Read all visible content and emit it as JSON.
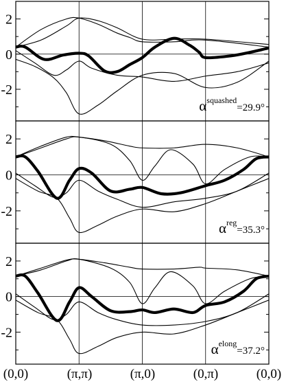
{
  "chart_data": [
    {
      "type": "line",
      "ylim": [
        -3.8,
        3.0
      ],
      "yticks": [
        "2",
        "0",
        "-2"
      ],
      "annotation": {
        "symbol": "α",
        "superscript": "squashed",
        "value": "=29.9°"
      },
      "series": [
        {
          "weight": "thick",
          "points": [
            [
              0,
              0.4
            ],
            [
              0.15,
              0.4
            ],
            [
              0.45,
              -0.3
            ],
            [
              0.75,
              -0.05
            ],
            [
              1.0,
              0.05
            ],
            [
              1.15,
              -0.1
            ],
            [
              1.4,
              -0.95
            ],
            [
              1.6,
              -1.0
            ],
            [
              1.8,
              -0.6
            ],
            [
              2.0,
              -0.2
            ],
            [
              2.2,
              0.4
            ],
            [
              2.5,
              0.9
            ],
            [
              2.75,
              0.5
            ],
            [
              2.9,
              0.1
            ],
            [
              3.0,
              -0.2
            ],
            [
              3.4,
              -0.1
            ],
            [
              3.7,
              0.1
            ],
            [
              4.0,
              0.35
            ]
          ]
        },
        {
          "weight": "thin",
          "points": [
            [
              0,
              0.4
            ],
            [
              0.4,
              1.4
            ],
            [
              0.8,
              2.0
            ],
            [
              1.0,
              2.05
            ],
            [
              1.3,
              1.7
            ],
            [
              1.6,
              1.2
            ],
            [
              1.8,
              0.95
            ],
            [
              2.0,
              0.7
            ],
            [
              2.5,
              0.7
            ],
            [
              3.0,
              0.8
            ],
            [
              4.0,
              0.4
            ]
          ]
        },
        {
          "weight": "thin",
          "points": [
            [
              0,
              0.4
            ],
            [
              0.4,
              0.8
            ],
            [
              0.8,
              1.6
            ],
            [
              1.0,
              2.05
            ],
            [
              1.3,
              1.9
            ],
            [
              1.6,
              1.5
            ],
            [
              2.0,
              0.85
            ],
            [
              2.5,
              0.85
            ],
            [
              3.0,
              0.85
            ],
            [
              4.0,
              0.55
            ]
          ]
        },
        {
          "weight": "thin",
          "points": [
            [
              0,
              0.2
            ],
            [
              0.3,
              -0.5
            ],
            [
              0.6,
              -1.2
            ],
            [
              0.8,
              -0.9
            ],
            [
              1.0,
              -0.4
            ],
            [
              1.2,
              -0.8
            ],
            [
              1.6,
              -1.2
            ],
            [
              2.0,
              -1.3
            ],
            [
              2.5,
              -1.55
            ],
            [
              3.0,
              -1.25
            ],
            [
              3.5,
              -1.0
            ],
            [
              4.0,
              -0.5
            ]
          ]
        },
        {
          "weight": "thin",
          "points": [
            [
              0,
              -0.3
            ],
            [
              0.3,
              -0.7
            ],
            [
              0.6,
              -1.35
            ],
            [
              0.8,
              -2.2
            ],
            [
              1.0,
              -3.4
            ],
            [
              1.3,
              -2.9
            ],
            [
              1.6,
              -2.1
            ],
            [
              2.0,
              -1.2
            ],
            [
              2.5,
              -1.1
            ],
            [
              3.0,
              -1.9
            ],
            [
              3.5,
              -1.6
            ],
            [
              4.0,
              -0.4
            ]
          ]
        }
      ]
    },
    {
      "type": "line",
      "ylim": [
        -3.8,
        3.0
      ],
      "yticks": [
        "2",
        "0",
        "-2"
      ],
      "annotation": {
        "symbol": "α",
        "superscript": "reg",
        "value": "=35.3°"
      },
      "series": [
        {
          "weight": "thick",
          "points": [
            [
              0,
              1.0
            ],
            [
              0.15,
              1.0
            ],
            [
              0.35,
              0.2
            ],
            [
              0.65,
              -1.3
            ],
            [
              0.85,
              -0.3
            ],
            [
              1.0,
              0.35
            ],
            [
              1.2,
              0.1
            ],
            [
              1.5,
              -0.9
            ],
            [
              1.8,
              -0.8
            ],
            [
              2.0,
              -0.7
            ],
            [
              2.3,
              -1.05
            ],
            [
              2.6,
              -1.0
            ],
            [
              3.0,
              -0.6
            ],
            [
              3.3,
              -0.3
            ],
            [
              3.6,
              0.3
            ],
            [
              3.8,
              0.9
            ],
            [
              4.0,
              1.0
            ]
          ]
        },
        {
          "weight": "thin",
          "points": [
            [
              0,
              1.0
            ],
            [
              0.4,
              1.6
            ],
            [
              0.8,
              2.1
            ],
            [
              1.0,
              2.1
            ],
            [
              1.4,
              1.9
            ],
            [
              1.8,
              1.6
            ],
            [
              2.0,
              1.5
            ],
            [
              2.5,
              1.5
            ],
            [
              3.0,
              1.7
            ],
            [
              3.5,
              1.5
            ],
            [
              4.0,
              1.0
            ]
          ]
        },
        {
          "weight": "thin",
          "points": [
            [
              0,
              1.0
            ],
            [
              0.4,
              1.5
            ],
            [
              0.8,
              2.0
            ],
            [
              1.0,
              2.1
            ],
            [
              1.5,
              1.7
            ],
            [
              1.8,
              0.8
            ],
            [
              2.0,
              -0.3
            ],
            [
              2.2,
              0.5
            ],
            [
              2.45,
              1.4
            ],
            [
              2.8,
              0.6
            ],
            [
              3.0,
              -0.5
            ],
            [
              3.3,
              0.3
            ],
            [
              3.7,
              1.0
            ],
            [
              4.0,
              1.0
            ]
          ]
        },
        {
          "weight": "thin",
          "points": [
            [
              0,
              0.1
            ],
            [
              0.3,
              -0.6
            ],
            [
              0.6,
              -1.25
            ],
            [
              0.8,
              -1.0
            ],
            [
              1.0,
              -0.3
            ],
            [
              1.3,
              -0.9
            ],
            [
              1.6,
              -1.35
            ],
            [
              2.0,
              -1.8
            ],
            [
              2.5,
              -1.5
            ],
            [
              3.0,
              -1.3
            ],
            [
              3.5,
              -0.9
            ],
            [
              4.0,
              0.1
            ]
          ]
        },
        {
          "weight": "thin",
          "points": [
            [
              0,
              -0.2
            ],
            [
              0.35,
              -0.9
            ],
            [
              0.65,
              -1.3
            ],
            [
              0.85,
              -2.4
            ],
            [
              1.0,
              -3.2
            ],
            [
              1.3,
              -2.8
            ],
            [
              1.6,
              -2.3
            ],
            [
              2.0,
              -1.9
            ],
            [
              2.5,
              -2.05
            ],
            [
              3.0,
              -1.6
            ],
            [
              3.5,
              -0.9
            ],
            [
              4.0,
              -0.2
            ]
          ]
        }
      ]
    },
    {
      "type": "line",
      "ylim": [
        -3.8,
        3.0
      ],
      "yticks": [
        "2",
        "0",
        "-2"
      ],
      "annotation": {
        "symbol": "α",
        "superscript": "elong",
        "value": "=37.2°"
      },
      "series": [
        {
          "weight": "thick",
          "points": [
            [
              0,
              1.15
            ],
            [
              0.15,
              1.15
            ],
            [
              0.35,
              0.2
            ],
            [
              0.65,
              -1.35
            ],
            [
              0.85,
              -0.3
            ],
            [
              1.0,
              0.5
            ],
            [
              1.2,
              0.0
            ],
            [
              1.5,
              -0.8
            ],
            [
              1.8,
              -0.85
            ],
            [
              2.0,
              -0.75
            ],
            [
              2.2,
              -0.9
            ],
            [
              2.5,
              -0.7
            ],
            [
              2.8,
              -0.9
            ],
            [
              3.0,
              -0.5
            ],
            [
              3.3,
              -0.3
            ],
            [
              3.6,
              0.3
            ],
            [
              3.8,
              1.0
            ],
            [
              4.0,
              1.15
            ]
          ]
        },
        {
          "weight": "thin",
          "points": [
            [
              0,
              1.15
            ],
            [
              0.4,
              1.6
            ],
            [
              0.8,
              2.05
            ],
            [
              1.0,
              2.1
            ],
            [
              1.4,
              1.9
            ],
            [
              1.8,
              1.65
            ],
            [
              2.0,
              1.55
            ],
            [
              2.5,
              1.55
            ],
            [
              2.9,
              1.65
            ],
            [
              3.0,
              1.6
            ],
            [
              3.5,
              1.5
            ],
            [
              4.0,
              1.15
            ]
          ]
        },
        {
          "weight": "thin",
          "points": [
            [
              0,
              1.15
            ],
            [
              0.4,
              1.5
            ],
            [
              0.8,
              2.0
            ],
            [
              1.0,
              2.1
            ],
            [
              1.5,
              1.6
            ],
            [
              1.8,
              0.8
            ],
            [
              2.0,
              -0.4
            ],
            [
              2.2,
              0.5
            ],
            [
              2.45,
              1.4
            ],
            [
              2.8,
              0.6
            ],
            [
              3.0,
              -0.4
            ],
            [
              3.3,
              0.3
            ],
            [
              3.7,
              1.0
            ],
            [
              4.0,
              1.15
            ]
          ]
        },
        {
          "weight": "thin",
          "points": [
            [
              0,
              0.15
            ],
            [
              0.3,
              -0.6
            ],
            [
              0.6,
              -1.3
            ],
            [
              0.8,
              -1.0
            ],
            [
              1.0,
              -0.3
            ],
            [
              1.3,
              -0.9
            ],
            [
              1.6,
              -1.3
            ],
            [
              2.0,
              -1.6
            ],
            [
              2.5,
              -1.6
            ],
            [
              3.0,
              -1.4
            ],
            [
              3.5,
              -0.9
            ],
            [
              4.0,
              0.15
            ]
          ]
        },
        {
          "weight": "thin",
          "points": [
            [
              0,
              -0.2
            ],
            [
              0.35,
              -0.9
            ],
            [
              0.65,
              -1.3
            ],
            [
              0.85,
              -2.4
            ],
            [
              1.0,
              -3.2
            ],
            [
              1.3,
              -2.8
            ],
            [
              1.6,
              -2.3
            ],
            [
              2.0,
              -2.0
            ],
            [
              2.5,
              -2.1
            ],
            [
              3.0,
              -1.6
            ],
            [
              3.5,
              -0.9
            ],
            [
              4.0,
              -0.2
            ]
          ]
        }
      ]
    }
  ],
  "x_tick_labels": [
    "(0,0)",
    "(π,π)",
    "(π,0)",
    "(0,π)",
    "(0,0)"
  ]
}
